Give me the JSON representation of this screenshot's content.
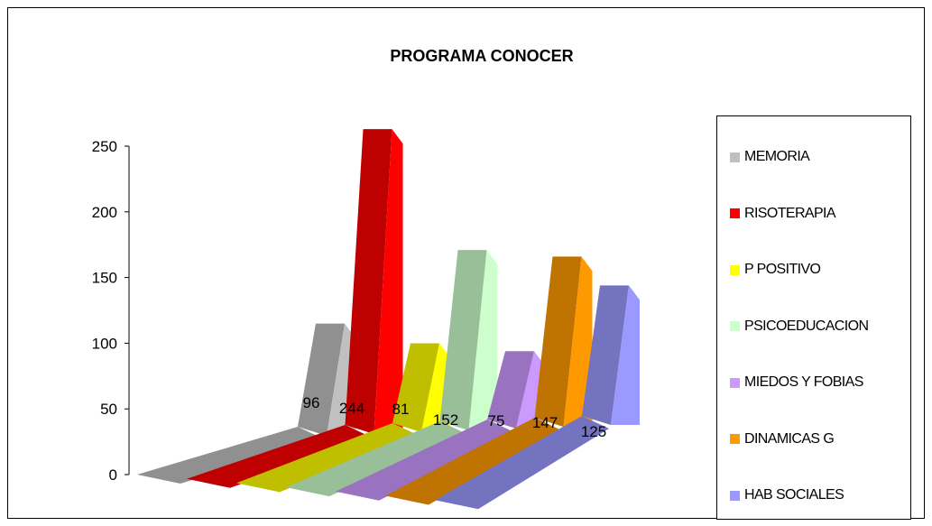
{
  "chart_data": {
    "type": "bar",
    "title": "PROGRAMA CONOCER",
    "categories": [
      "MEMORIA",
      "RISOTERAPIA",
      "P POSITIVO",
      "PSICOEDUCACION",
      "MIEDOS Y FOBIAS",
      "DINAMICAS G",
      "HAB SOCIALES"
    ],
    "series": [
      {
        "name": "MEMORIA",
        "value": 96,
        "color": "#c0c0c0"
      },
      {
        "name": "RISOTERAPIA",
        "value": 244,
        "color": "#ff0000"
      },
      {
        "name": "P POSITIVO",
        "value": 81,
        "color": "#ffff00"
      },
      {
        "name": "PSICOEDUCACION",
        "value": 152,
        "color": "#ccffcc"
      },
      {
        "name": "MIEDOS Y FOBIAS",
        "value": 75,
        "color": "#cc99ff"
      },
      {
        "name": "DINAMICAS G",
        "value": 147,
        "color": "#ff9900"
      },
      {
        "name": "HAB SOCIALES",
        "value": 125,
        "color": "#9999ff"
      }
    ],
    "value_labels": [
      "96",
      "244",
      "81",
      "152",
      "75",
      "147",
      "125"
    ],
    "yticks": [
      "0",
      "50",
      "100",
      "150",
      "200",
      "250"
    ],
    "ylim": [
      0,
      250
    ],
    "legend_position": "right",
    "grid": false
  }
}
